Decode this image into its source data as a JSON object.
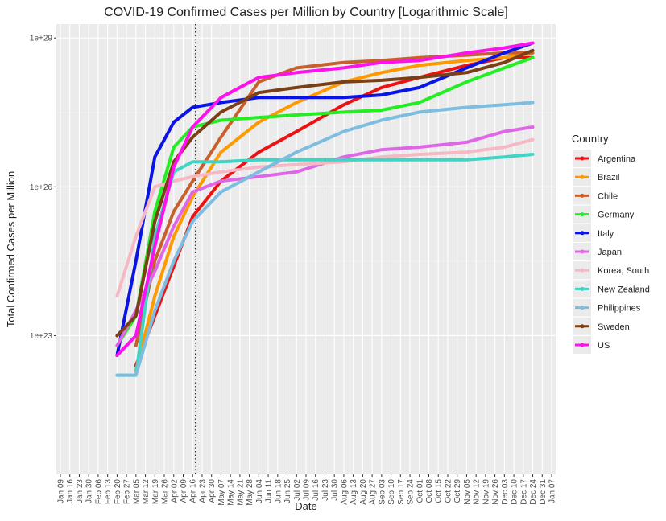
{
  "chart_data": {
    "type": "line",
    "title": "COVID-19 Confirmed Cases per Million by Country [Logarithmic Scale]",
    "x_label": "Date",
    "y_label": "Total Confirmed Cases per Million",
    "legend_title": "Country",
    "legend_position": "right",
    "log_y": true,
    "grid": true,
    "vline_x": "Apr 18",
    "ylim": [
      1.6e+20,
      1.9e+29
    ],
    "yticks": [
      {
        "value": 1e+23,
        "label": "1e+23"
      },
      {
        "value": 1e+26,
        "label": "1e+26"
      },
      {
        "value": 1e+29,
        "label": "1e+29"
      }
    ],
    "xticks": [
      "Jan 09",
      "Jan 16",
      "Jan 23",
      "Jan 30",
      "Feb 06",
      "Feb 13",
      "Feb 20",
      "Feb 27",
      "Mar 05",
      "Mar 12",
      "Mar 19",
      "Mar 26",
      "Apr 02",
      "Apr 09",
      "Apr 16",
      "Apr 23",
      "Apr 30",
      "May 07",
      "May 14",
      "May 21",
      "May 28",
      "Jun 04",
      "Jun 11",
      "Jun 18",
      "Jun 25",
      "Jul 02",
      "Jul 09",
      "Jul 16",
      "Jul 23",
      "Jul 30",
      "Aug 06",
      "Aug 13",
      "Aug 20",
      "Aug 27",
      "Sep 03",
      "Sep 10",
      "Sep 17",
      "Sep 24",
      "Oct 01",
      "Oct 08",
      "Oct 15",
      "Oct 22",
      "Oct 29",
      "Nov 05",
      "Nov 12",
      "Nov 19",
      "Nov 26",
      "Dec 03",
      "Dec 10",
      "Dec 17",
      "Dec 24",
      "Dec 31",
      "Jan 07"
    ],
    "x": [
      "Feb 20",
      "Mar 05",
      "Mar 19",
      "Apr 02",
      "Apr 16",
      "May 07",
      "Jun 04",
      "Jul 02",
      "Aug 06",
      "Sep 03",
      "Oct 01",
      "Nov 05",
      "Dec 03",
      "Dec 24"
    ],
    "series": [
      {
        "name": "Argentina",
        "color": "#ee1111",
        "values": [
          null,
          2.5e+22,
          2.5e+23,
          2.5e+24,
          2.5e+25,
          1.3e+26,
          5e+26,
          1.3e+27,
          4.5e+27,
          1e+28,
          1.6e+28,
          2.8e+28,
          4e+28,
          4e+28
        ]
      },
      {
        "name": "Brazil",
        "color": "#ff9900",
        "values": [
          null,
          2e+22,
          6.3e+23,
          1e+25,
          6.3e+25,
          5e+26,
          2e+27,
          5e+27,
          1.3e+28,
          2e+28,
          2.8e+28,
          3.5e+28,
          4e+28,
          5e+28
        ]
      },
      {
        "name": "Chile",
        "color": "#c8602d",
        "values": [
          null,
          6.3e+22,
          3.2e+24,
          3.2e+25,
          1.3e+26,
          1e+27,
          1.3e+28,
          2.5e+28,
          3.2e+28,
          3.5e+28,
          4e+28,
          4.5e+28,
          5e+28,
          5e+28
        ]
      },
      {
        "name": "Germany",
        "color": "#22ee22",
        "values": [
          6.3e+22,
          2.5e+23,
          3.2e+25,
          6.3e+26,
          1.6e+27,
          2.2e+27,
          2.5e+27,
          2.8e+27,
          3.2e+27,
          3.5e+27,
          5e+27,
          1.3e+28,
          2.5e+28,
          4e+28
        ]
      },
      {
        "name": "Italy",
        "color": "#0a14e6",
        "values": [
          4e+22,
          3.2e+24,
          4e+26,
          2e+27,
          4e+27,
          5e+27,
          6.3e+27,
          6.3e+27,
          6.3e+27,
          7.1e+27,
          1e+28,
          2.5e+28,
          5e+28,
          7.9e+28
        ]
      },
      {
        "name": "Japan",
        "color": "#e066e8",
        "values": [
          6.3e+22,
          3.2e+23,
          2e+24,
          1.6e+25,
          7.9e+25,
          1.3e+26,
          1.6e+26,
          2e+26,
          4e+26,
          5.6e+26,
          6.3e+26,
          7.9e+26,
          1.3e+27,
          1.6e+27
        ]
      },
      {
        "name": "Korea, South",
        "color": "#f5b8c4",
        "values": [
          6.3e+23,
          1e+25,
          1e+26,
          1.3e+26,
          1.6e+26,
          2e+26,
          2.5e+26,
          2.8e+26,
          3.2e+26,
          4e+26,
          4.5e+26,
          5e+26,
          6.3e+26,
          8.9e+26
        ]
      },
      {
        "name": "New Zealand",
        "color": "#3fd4c4",
        "values": [
          1.6e+22,
          1.6e+22,
          1e+25,
          2e+26,
          3.2e+26,
          3.2e+26,
          3.5e+26,
          3.5e+26,
          3.5e+26,
          3.5e+26,
          3.5e+26,
          3.5e+26,
          4e+26,
          4.5e+26
        ]
      },
      {
        "name": "Philippines",
        "color": "#7ebde0",
        "values": [
          1.6e+22,
          1.6e+22,
          3.2e+23,
          3.2e+24,
          2e+25,
          7.9e+25,
          2e+26,
          5e+26,
          1.3e+27,
          2.2e+27,
          3.2e+27,
          4e+27,
          4.5e+27,
          5e+27
        ]
      },
      {
        "name": "Sweden",
        "color": "#7a3f14",
        "values": [
          1e+23,
          2.5e+23,
          2e+25,
          3.2e+26,
          1e+27,
          3.2e+27,
          7.9e+27,
          1e+28,
          1.3e+28,
          1.4e+28,
          1.6e+28,
          2e+28,
          3.2e+28,
          5.6e+28
        ]
      },
      {
        "name": "US",
        "color": "#ff11ee",
        "values": [
          4e+22,
          1e+23,
          6.3e+24,
          2.5e+26,
          1.6e+27,
          6.3e+27,
          1.6e+28,
          2e+28,
          2.5e+28,
          3.2e+28,
          3.5e+28,
          5e+28,
          6.3e+28,
          7.9e+28
        ]
      }
    ]
  }
}
